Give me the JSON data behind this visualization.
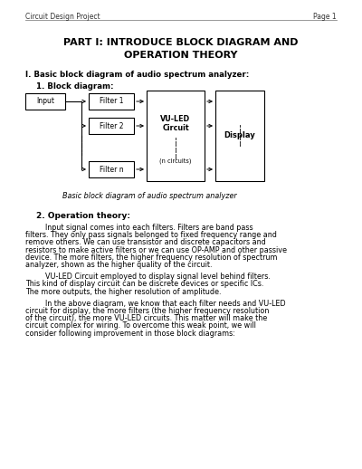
{
  "bg_color": "#ffffff",
  "header_left": "Circuit Design Project",
  "header_right": "Page 1",
  "title_line1": "PART I: INTRODUCE BLOCK DIAGRAM AND",
  "title_line2": "OPERATION THEORY",
  "section_heading": "I. Basic block diagram of audio spectrum analyzer:",
  "subsection1": "1. Block diagram:",
  "diagram_caption": "Basic block diagram of audio spectrum analyzer",
  "subsection2": "2. Operation theory:",
  "para1": "Input signal comes into each filters. Filters are band pass filters. They only pass signals belonged to fixed frequency range and remove others. We can use transistor and discrete capacitors and resistors to make active filters or we can use OP-AMP and other passive device. The more filters, the higher frequency resolution of spectrum analyzer, shown as the higher quality of the circuit.",
  "para2": "VU-LED Circuit employed to display signal level behind filters. This kind of display circuit can be discrete devices or specific ICs. The more outputs, the higher resolution of amplitude.",
  "para3": "In the above diagram, we know that each filter needs and VU-LED circuit for display, the more filters (the higher frequency resolution of the circuit), the more VU-LED circuits. This matter will make the circuit complex for wiring. To overcome this weak point, we will consider following improvement in those block diagrams:"
}
